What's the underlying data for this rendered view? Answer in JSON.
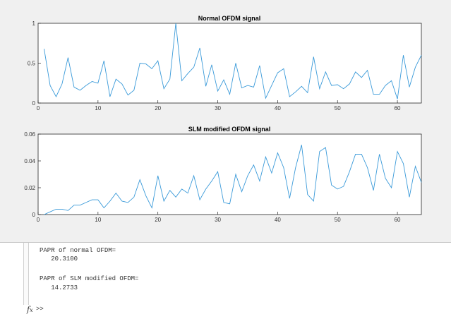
{
  "figure": {
    "plots": [
      {
        "title": "Normal OFDM signal",
        "xticks": [
          "0",
          "10",
          "20",
          "30",
          "40",
          "50",
          "60"
        ],
        "yticks": [
          "0",
          "0.5",
          "1"
        ]
      },
      {
        "title": "SLM modified OFDM signal",
        "xticks": [
          "0",
          "10",
          "20",
          "30",
          "40",
          "50",
          "60"
        ],
        "yticks": [
          "0",
          "0.02",
          "0.04",
          "0.06"
        ]
      }
    ]
  },
  "chart_data": [
    {
      "type": "line",
      "title": "Normal OFDM signal",
      "xlim": [
        0,
        64
      ],
      "ylim": [
        0,
        1
      ],
      "grid": false,
      "color": "#3a9ad9",
      "x": [
        1,
        2,
        3,
        4,
        5,
        6,
        7,
        8,
        9,
        10,
        11,
        12,
        13,
        14,
        15,
        16,
        17,
        18,
        19,
        20,
        21,
        22,
        23,
        24,
        25,
        26,
        27,
        28,
        29,
        30,
        31,
        32,
        33,
        34,
        35,
        36,
        37,
        38,
        39,
        40,
        41,
        42,
        43,
        44,
        45,
        46,
        47,
        48,
        49,
        50,
        51,
        52,
        53,
        54,
        55,
        56,
        57,
        58,
        59,
        60,
        61,
        62,
        63,
        64
      ],
      "values": [
        0.68,
        0.22,
        0.08,
        0.24,
        0.57,
        0.2,
        0.16,
        0.22,
        0.27,
        0.25,
        0.53,
        0.08,
        0.3,
        0.24,
        0.1,
        0.16,
        0.5,
        0.49,
        0.43,
        0.53,
        0.18,
        0.3,
        1.0,
        0.28,
        0.37,
        0.45,
        0.69,
        0.21,
        0.48,
        0.15,
        0.29,
        0.11,
        0.5,
        0.19,
        0.22,
        0.2,
        0.47,
        0.06,
        0.22,
        0.38,
        0.43,
        0.08,
        0.14,
        0.21,
        0.13,
        0.58,
        0.18,
        0.39,
        0.22,
        0.23,
        0.18,
        0.24,
        0.39,
        0.32,
        0.41,
        0.11,
        0.11,
        0.22,
        0.28,
        0.05,
        0.6,
        0.2,
        0.45,
        0.6
      ]
    },
    {
      "type": "line",
      "title": "SLM modified OFDM signal",
      "xlim": [
        0,
        64
      ],
      "ylim": [
        0,
        0.06
      ],
      "grid": false,
      "color": "#3a9ad9",
      "x": [
        1,
        2,
        3,
        4,
        5,
        6,
        7,
        8,
        9,
        10,
        11,
        12,
        13,
        14,
        15,
        16,
        17,
        18,
        19,
        20,
        21,
        22,
        23,
        24,
        25,
        26,
        27,
        28,
        29,
        30,
        31,
        32,
        33,
        34,
        35,
        36,
        37,
        38,
        39,
        40,
        41,
        42,
        43,
        44,
        45,
        46,
        47,
        48,
        49,
        50,
        51,
        52,
        53,
        54,
        55,
        56,
        57,
        58,
        59,
        60,
        61,
        62,
        63,
        64
      ],
      "values": [
        0.0,
        0.002,
        0.004,
        0.004,
        0.003,
        0.007,
        0.007,
        0.009,
        0.011,
        0.011,
        0.005,
        0.01,
        0.016,
        0.01,
        0.009,
        0.013,
        0.026,
        0.014,
        0.005,
        0.029,
        0.01,
        0.018,
        0.013,
        0.019,
        0.016,
        0.029,
        0.011,
        0.019,
        0.025,
        0.032,
        0.009,
        0.008,
        0.03,
        0.017,
        0.029,
        0.037,
        0.025,
        0.043,
        0.031,
        0.046,
        0.035,
        0.012,
        0.035,
        0.052,
        0.015,
        0.01,
        0.047,
        0.05,
        0.022,
        0.019,
        0.021,
        0.032,
        0.045,
        0.045,
        0.035,
        0.018,
        0.045,
        0.027,
        0.02,
        0.047,
        0.038,
        0.013,
        0.036,
        0.024
      ]
    }
  ],
  "command_window": {
    "lines": [
      "PAPR of normal OFDM=",
      "   20.3100",
      "",
      "PAPR of SLM modified OFDM=",
      "   14.2733"
    ],
    "fx_icon": "fx-icon",
    "prompt": ">>"
  }
}
